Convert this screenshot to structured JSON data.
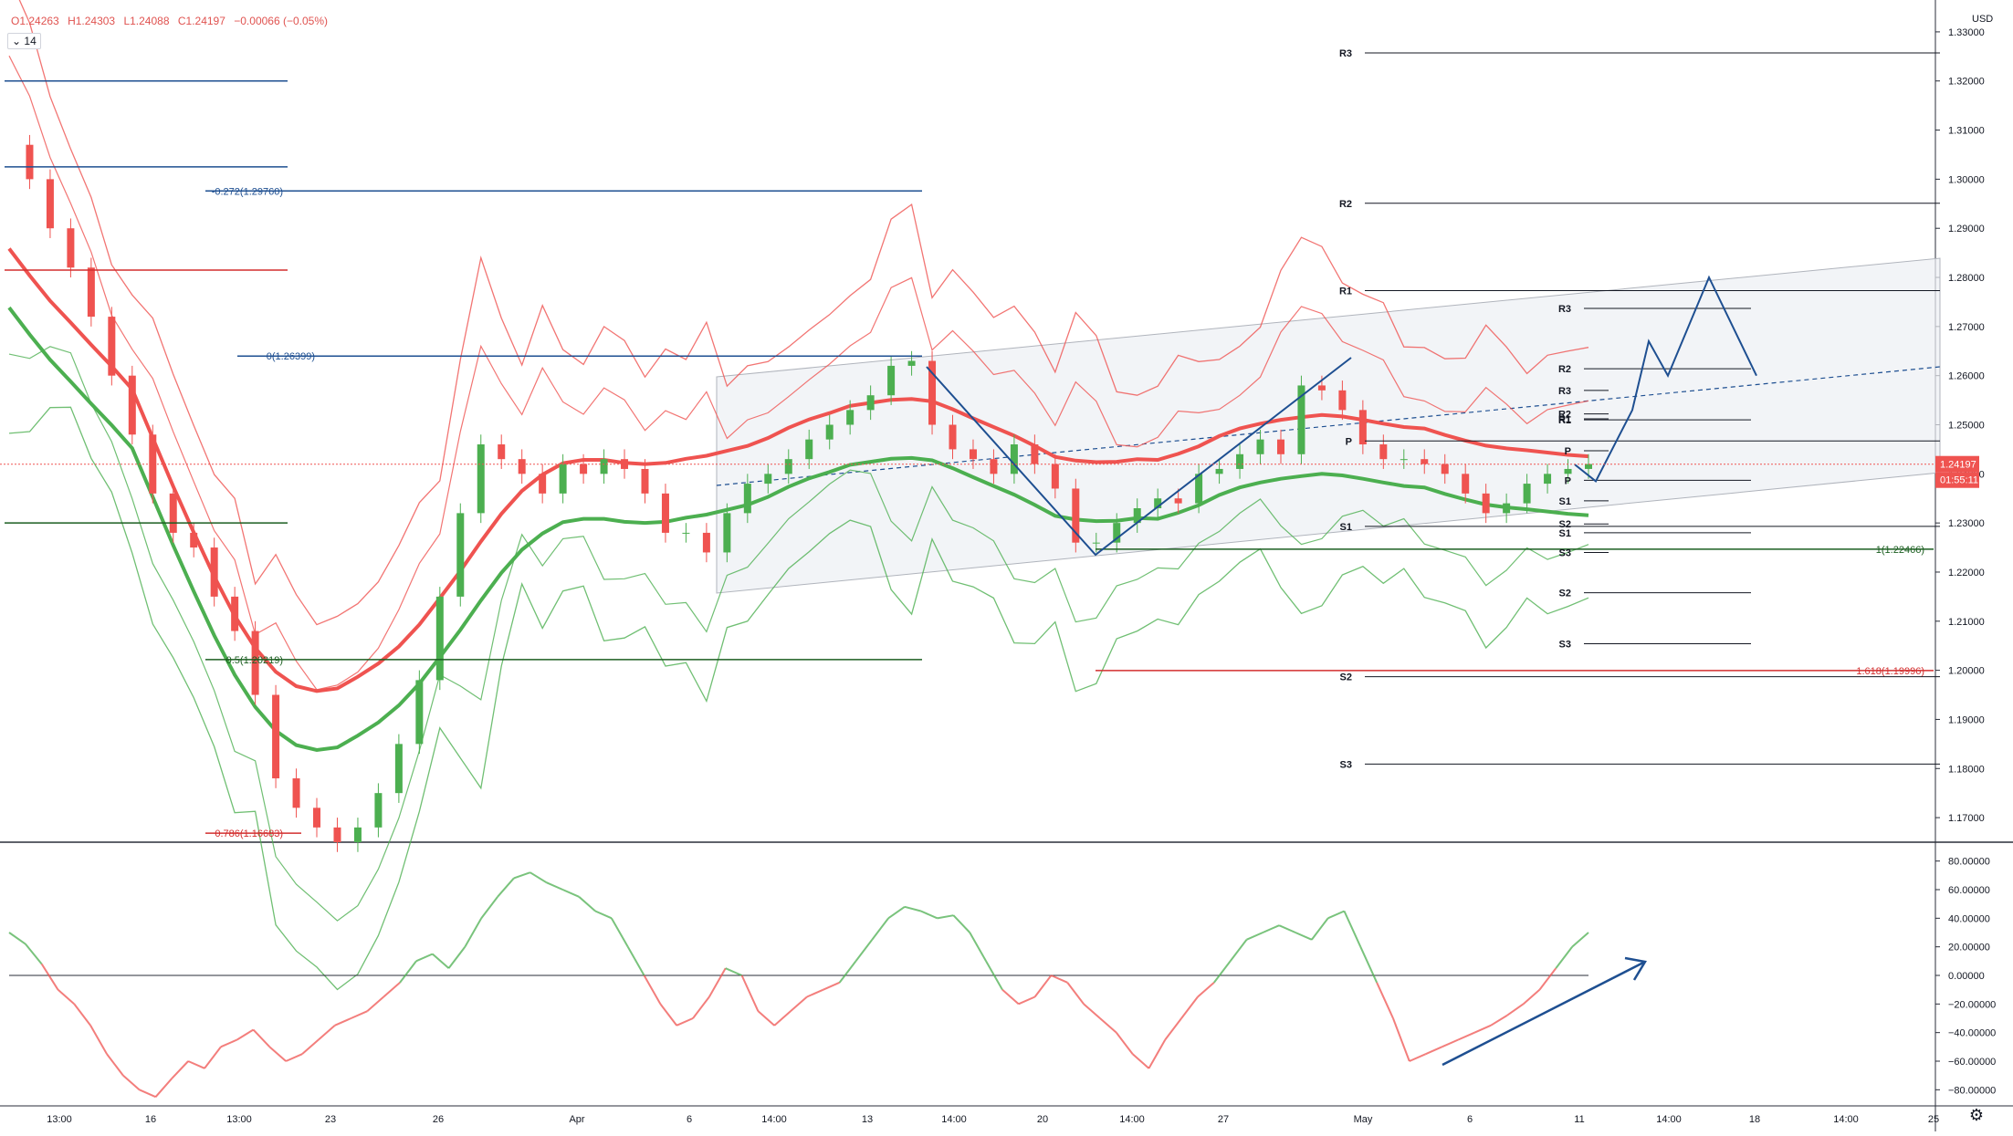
{
  "legend": {
    "open": "O1.24263",
    "high": "H1.24303",
    "low": "L1.24088",
    "close": "C1.24197",
    "change": "−0.00066 (−0.05%)",
    "period": "14"
  },
  "colors": {
    "up": "#4caf50",
    "down": "#ef5350",
    "fib_blue": "#1e4f91",
    "fib_green": "#1b5e20",
    "fib_red": "#d32f2f",
    "pivot": "#131722",
    "band_red": "#ef5350",
    "band_green": "#4caf50",
    "channel_fill": "#eceff3"
  },
  "chart_data": [
    {
      "type": "line",
      "name": "price",
      "currency": "USD",
      "ylim": [
        1.165,
        1.335
      ],
      "y_ticks": [
        "1.33000",
        "1.32000",
        "1.31000",
        "1.30000",
        "1.29000",
        "1.28000",
        "1.27000",
        "1.26000",
        "1.25000",
        "1.24000",
        "1.23000",
        "1.22000",
        "1.21000",
        "1.20000",
        "1.19000",
        "1.18000",
        "1.17000"
      ],
      "x_ticks": [
        "13:00",
        "16",
        "13:00",
        "23",
        "26",
        "Apr",
        "6",
        "14:00",
        "13",
        "14:00",
        "20",
        "14:00",
        "27",
        "May",
        "6",
        "11",
        "14:00",
        "18",
        "14:00",
        "25"
      ],
      "last_price": "1.24197",
      "countdown": "01:55:11",
      "series": [
        {
          "values": [
            1.307,
            1.3,
            1.29,
            1.282,
            1.272,
            1.26,
            1.248,
            1.236,
            1.228,
            1.225,
            1.215,
            1.208,
            1.195,
            1.178,
            1.172,
            1.168,
            1.165,
            1.168,
            1.175,
            1.185,
            1.198,
            1.215,
            1.232,
            1.246,
            1.243,
            1.24,
            1.236,
            1.242,
            1.24,
            1.243,
            1.241,
            1.236,
            1.228,
            1.228,
            1.224,
            1.232,
            1.238,
            1.24,
            1.243,
            1.247,
            1.25,
            1.253,
            1.256,
            1.262,
            1.263,
            1.25,
            1.245,
            1.243,
            1.24,
            1.246,
            1.242,
            1.237,
            1.226,
            1.226,
            1.23,
            1.233,
            1.235,
            1.234,
            1.24,
            1.241,
            1.244,
            1.247,
            1.244,
            1.258,
            1.257,
            1.253,
            1.246,
            1.243,
            1.243,
            1.242,
            1.24,
            1.236,
            1.232,
            1.234,
            1.238,
            1.24,
            1.241,
            1.242
          ]
        },
        {
          "name": "Forecast",
          "values": [
            1.2419,
            1.2385,
            1.253,
            1.267,
            1.26,
            1.28,
            1.26
          ]
        }
      ],
      "fib_levels": [
        {
          "label": "-0.272(1.29760)",
          "value": 1.2976,
          "color": "#1e4f91"
        },
        {
          "label": "0(1.26399)",
          "value": 1.26399,
          "color": "#1e4f91"
        },
        {
          "label": "0.5(1.20219)",
          "value": 1.20219,
          "color": "#1b5e20"
        },
        {
          "label": "0.786(1.16683)",
          "value": 1.16683,
          "color": "#d32f2f"
        },
        {
          "label": "1(1.22466)",
          "value": 1.22466,
          "color": "#1b5e20"
        },
        {
          "label": "1.618(1.19996)",
          "value": 1.19996,
          "color": "#d32f2f"
        }
      ],
      "horizontal_levels": [
        1.32,
        1.3025,
        1.2815,
        1.23
      ],
      "pivots_monthly": [
        {
          "label": "R3",
          "value": 1.3257
        },
        {
          "label": "R2",
          "value": 1.2951
        },
        {
          "label": "R1",
          "value": 1.2773
        },
        {
          "label": "P",
          "value": 1.2467
        },
        {
          "label": "S1",
          "value": 1.2293
        },
        {
          "label": "S2",
          "value": 1.1987
        },
        {
          "label": "S3",
          "value": 1.1809
        }
      ],
      "pivots_weekly": [
        {
          "label": "R3",
          "value": 1.2737
        },
        {
          "label": "R2",
          "value": 1.2614
        },
        {
          "label": "R1",
          "value": 1.251
        },
        {
          "label": "P",
          "value": 1.2387
        },
        {
          "label": "S1",
          "value": 1.228
        },
        {
          "label": "S2",
          "value": 1.2158
        },
        {
          "label": "S3",
          "value": 1.2054
        }
      ],
      "pivots_daily": [
        {
          "label": "R3",
          "value": 1.257
        },
        {
          "label": "R2",
          "value": 1.2522
        },
        {
          "label": "R1",
          "value": 1.2512
        },
        {
          "label": "P",
          "value": 1.2447
        },
        {
          "label": "S1",
          "value": 1.2345
        },
        {
          "label": "S2",
          "value": 1.2298
        },
        {
          "label": "S3",
          "value": 1.224
        }
      ]
    },
    {
      "type": "line",
      "name": "oscillator",
      "ylim": [
        -90,
        90
      ],
      "y_ticks": [
        "80.00000",
        "60.00000",
        "40.00000",
        "20.00000",
        "0.00000",
        "−20.00000",
        "−40.00000",
        "−60.00000",
        "−80.00000"
      ],
      "values": [
        30,
        22,
        8,
        -10,
        -20,
        -35,
        -55,
        -70,
        -80,
        -85,
        -72,
        -60,
        -65,
        -50,
        -45,
        -38,
        -50,
        -60,
        -55,
        -45,
        -35,
        -30,
        -25,
        -15,
        -5,
        10,
        15,
        5,
        20,
        40,
        55,
        68,
        72,
        65,
        60,
        55,
        45,
        40,
        20,
        0,
        -20,
        -35,
        -30,
        -15,
        5,
        0,
        -25,
        -35,
        -25,
        -15,
        -10,
        -5,
        10,
        25,
        40,
        48,
        45,
        40,
        42,
        30,
        10,
        -10,
        -20,
        -15,
        0,
        -5,
        -20,
        -30,
        -40,
        -55,
        -65,
        -45,
        -30,
        -15,
        -5,
        10,
        25,
        30,
        35,
        30,
        25,
        40,
        45,
        20,
        -5,
        -30,
        -60,
        -55,
        -50,
        -45,
        -40,
        -35,
        -28,
        -20,
        -10,
        5,
        20,
        30
      ]
    }
  ],
  "markup": {
    "ranges": []
  }
}
